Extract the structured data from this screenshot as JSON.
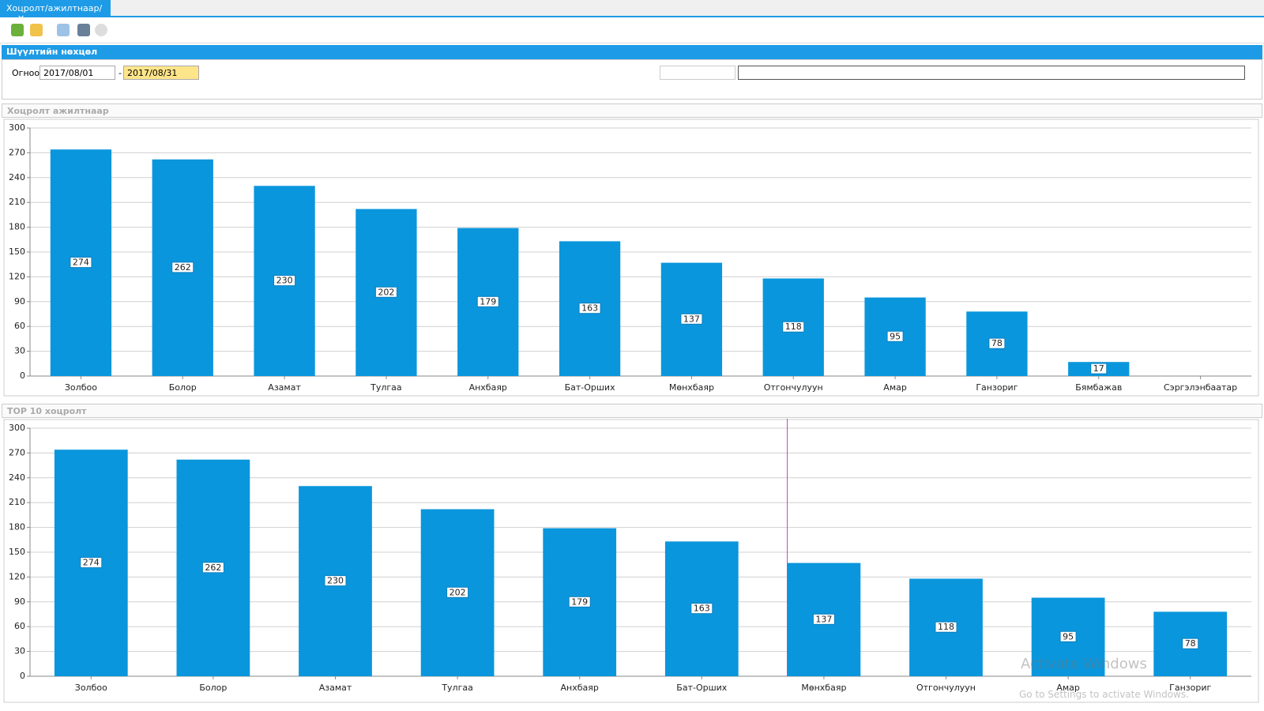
{
  "tab": {
    "title": "Хоцролт/ажилтнаар/"
  },
  "filter": {
    "title": "Шүүлтийн нөхцөл",
    "date_label": "Огноо",
    "date_from": "2017/08/01",
    "separator": "-",
    "date_to": "2017/08/31"
  },
  "watermark": {
    "line1": "Activate Windows",
    "line2": "Go to Settings to activate Windows."
  },
  "chart_data": [
    {
      "type": "bar",
      "title": "Хоцролт ажилтнаар",
      "categories": [
        "Золбоо",
        "Болор",
        "Азамат",
        "Тулгаа",
        "Анхбаяр",
        "Бат-Орших",
        "Мөнхбаяр",
        "Отгончулуун",
        "Амар",
        "Ганзориг",
        "Бямбажав",
        "Сэргэлэнбаатар"
      ],
      "values": [
        274,
        262,
        230,
        202,
        179,
        163,
        137,
        118,
        95,
        78,
        17,
        null
      ],
      "color": "#0a96dc",
      "ylim": [
        0,
        300
      ],
      "yticks": [
        0,
        30,
        60,
        90,
        120,
        150,
        180,
        210,
        240,
        270,
        300
      ],
      "grid": true
    },
    {
      "type": "bar",
      "title": "TOP 10 хоцролт",
      "categories": [
        "Золбоо",
        "Болор",
        "Азамат",
        "Тулгаа",
        "Анхбаяр",
        "Бат-Орших",
        "Мөнхбаяр",
        "Отгончулуун",
        "Амар",
        "Ганзориг"
      ],
      "values": [
        274,
        262,
        230,
        202,
        179,
        163,
        137,
        118,
        95,
        78
      ],
      "color": "#0a96dc",
      "ylim": [
        0,
        300
      ],
      "yticks": [
        0,
        30,
        60,
        90,
        120,
        150,
        180,
        210,
        240,
        270,
        300
      ],
      "grid": true
    }
  ]
}
